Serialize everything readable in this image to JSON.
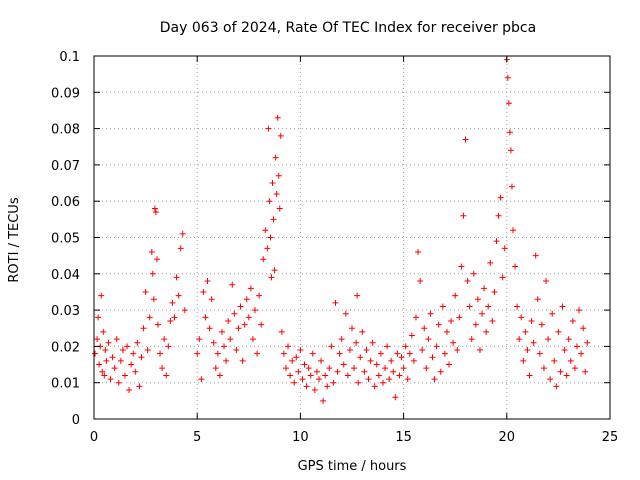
{
  "chart_data": {
    "type": "scatter",
    "title": "Day 063 of 2024, Rate Of TEC Index for receiver pbca",
    "xlabel": "GPS time / hours",
    "ylabel": "ROTI / TECUs",
    "xlim": [
      0,
      25
    ],
    "ylim": [
      0,
      0.1
    ],
    "xticks": [
      "0",
      "5",
      "10",
      "15",
      "20",
      "25"
    ],
    "yticks": [
      "0",
      "0.01",
      "0.02",
      "0.03",
      "0.04",
      "0.05",
      "0.06",
      "0.07",
      "0.08",
      "0.09",
      "0.1"
    ],
    "grid": true,
    "marker": "+",
    "color": "#ff0000",
    "series": [
      {
        "name": "ROTI",
        "points": [
          [
            0.05,
            0.018
          ],
          [
            0.15,
            0.022
          ],
          [
            0.2,
            0.028
          ],
          [
            0.25,
            0.015
          ],
          [
            0.3,
            0.02
          ],
          [
            0.35,
            0.034
          ],
          [
            0.4,
            0.013
          ],
          [
            0.45,
            0.024
          ],
          [
            0.5,
            0.012
          ],
          [
            0.55,
            0.019
          ],
          [
            0.6,
            0.016
          ],
          [
            0.7,
            0.021
          ],
          [
            0.8,
            0.011
          ],
          [
            0.9,
            0.017
          ],
          [
            1.0,
            0.014
          ],
          [
            1.1,
            0.022
          ],
          [
            1.2,
            0.01
          ],
          [
            1.3,
            0.016
          ],
          [
            1.4,
            0.019
          ],
          [
            1.5,
            0.012
          ],
          [
            1.6,
            0.02
          ],
          [
            1.7,
            0.008
          ],
          [
            1.8,
            0.015
          ],
          [
            1.9,
            0.018
          ],
          [
            2.0,
            0.013
          ],
          [
            2.1,
            0.021
          ],
          [
            2.2,
            0.009
          ],
          [
            2.3,
            0.017
          ],
          [
            2.4,
            0.025
          ],
          [
            2.5,
            0.035
          ],
          [
            2.6,
            0.019
          ],
          [
            2.7,
            0.028
          ],
          [
            2.8,
            0.046
          ],
          [
            2.85,
            0.04
          ],
          [
            2.9,
            0.033
          ],
          [
            2.95,
            0.058
          ],
          [
            3.0,
            0.057
          ],
          [
            3.05,
            0.044
          ],
          [
            3.1,
            0.026
          ],
          [
            3.2,
            0.018
          ],
          [
            3.3,
            0.014
          ],
          [
            3.4,
            0.022
          ],
          [
            3.5,
            0.012
          ],
          [
            3.6,
            0.02
          ],
          [
            3.7,
            0.027
          ],
          [
            3.8,
            0.032
          ],
          [
            3.9,
            0.028
          ],
          [
            4.0,
            0.039
          ],
          [
            4.1,
            0.034
          ],
          [
            4.2,
            0.047
          ],
          [
            4.3,
            0.051
          ],
          [
            4.4,
            0.03
          ],
          [
            5.0,
            0.018
          ],
          [
            5.1,
            0.022
          ],
          [
            5.2,
            0.011
          ],
          [
            5.3,
            0.035
          ],
          [
            5.4,
            0.028
          ],
          [
            5.5,
            0.038
          ],
          [
            5.6,
            0.025
          ],
          [
            5.7,
            0.033
          ],
          [
            5.8,
            0.021
          ],
          [
            5.9,
            0.014
          ],
          [
            6.0,
            0.018
          ],
          [
            6.1,
            0.012
          ],
          [
            6.2,
            0.024
          ],
          [
            6.3,
            0.02
          ],
          [
            6.4,
            0.016
          ],
          [
            6.5,
            0.027
          ],
          [
            6.6,
            0.022
          ],
          [
            6.7,
            0.037
          ],
          [
            6.8,
            0.029
          ],
          [
            6.9,
            0.019
          ],
          [
            7.0,
            0.025
          ],
          [
            7.1,
            0.031
          ],
          [
            7.2,
            0.016
          ],
          [
            7.3,
            0.026
          ],
          [
            7.4,
            0.033
          ],
          [
            7.5,
            0.028
          ],
          [
            7.6,
            0.036
          ],
          [
            7.7,
            0.022
          ],
          [
            7.8,
            0.03
          ],
          [
            7.9,
            0.018
          ],
          [
            8.0,
            0.034
          ],
          [
            8.1,
            0.026
          ],
          [
            8.2,
            0.044
          ],
          [
            8.3,
            0.052
          ],
          [
            8.4,
            0.047
          ],
          [
            8.45,
            0.08
          ],
          [
            8.5,
            0.06
          ],
          [
            8.55,
            0.05
          ],
          [
            8.6,
            0.039
          ],
          [
            8.65,
            0.065
          ],
          [
            8.7,
            0.055
          ],
          [
            8.75,
            0.041
          ],
          [
            8.8,
            0.072
          ],
          [
            8.85,
            0.062
          ],
          [
            8.9,
            0.083
          ],
          [
            8.95,
            0.067
          ],
          [
            9.0,
            0.058
          ],
          [
            9.05,
            0.078
          ],
          [
            9.1,
            0.024
          ],
          [
            9.2,
            0.018
          ],
          [
            9.3,
            0.014
          ],
          [
            9.4,
            0.02
          ],
          [
            9.5,
            0.012
          ],
          [
            9.6,
            0.016
          ],
          [
            9.7,
            0.01
          ],
          [
            9.8,
            0.017
          ],
          [
            9.9,
            0.013
          ],
          [
            10.0,
            0.019
          ],
          [
            10.1,
            0.011
          ],
          [
            10.2,
            0.015
          ],
          [
            10.3,
            0.009
          ],
          [
            10.4,
            0.014
          ],
          [
            10.5,
            0.012
          ],
          [
            10.6,
            0.018
          ],
          [
            10.7,
            0.008
          ],
          [
            10.8,
            0.013
          ],
          [
            10.9,
            0.011
          ],
          [
            11.0,
            0.016
          ],
          [
            11.1,
            0.005
          ],
          [
            11.2,
            0.012
          ],
          [
            11.3,
            0.009
          ],
          [
            11.4,
            0.014
          ],
          [
            11.5,
            0.02
          ],
          [
            11.6,
            0.01
          ],
          [
            11.7,
            0.032
          ],
          [
            11.8,
            0.013
          ],
          [
            11.9,
            0.018
          ],
          [
            12.0,
            0.022
          ],
          [
            12.1,
            0.015
          ],
          [
            12.2,
            0.029
          ],
          [
            12.3,
            0.012
          ],
          [
            12.4,
            0.019
          ],
          [
            12.5,
            0.025
          ],
          [
            12.6,
            0.014
          ],
          [
            12.7,
            0.021
          ],
          [
            12.75,
            0.034
          ],
          [
            12.8,
            0.01
          ],
          [
            12.9,
            0.017
          ],
          [
            13.0,
            0.024
          ],
          [
            13.1,
            0.013
          ],
          [
            13.2,
            0.019
          ],
          [
            13.3,
            0.011
          ],
          [
            13.4,
            0.016
          ],
          [
            13.5,
            0.021
          ],
          [
            13.6,
            0.009
          ],
          [
            13.7,
            0.015
          ],
          [
            13.8,
            0.012
          ],
          [
            13.9,
            0.018
          ],
          [
            14.0,
            0.01
          ],
          [
            14.1,
            0.014
          ],
          [
            14.2,
            0.02
          ],
          [
            14.3,
            0.011
          ],
          [
            14.4,
            0.016
          ],
          [
            14.5,
            0.013
          ],
          [
            14.6,
            0.006
          ],
          [
            14.7,
            0.018
          ],
          [
            14.8,
            0.012
          ],
          [
            14.9,
            0.017
          ],
          [
            15.0,
            0.014
          ],
          [
            15.1,
            0.02
          ],
          [
            15.2,
            0.011
          ],
          [
            15.3,
            0.018
          ],
          [
            15.4,
            0.023
          ],
          [
            15.5,
            0.016
          ],
          [
            15.6,
            0.028
          ],
          [
            15.7,
            0.046
          ],
          [
            15.8,
            0.038
          ],
          [
            15.9,
            0.019
          ],
          [
            16.0,
            0.025
          ],
          [
            16.1,
            0.014
          ],
          [
            16.2,
            0.022
          ],
          [
            16.3,
            0.029
          ],
          [
            16.4,
            0.017
          ],
          [
            16.5,
            0.011
          ],
          [
            16.6,
            0.02
          ],
          [
            16.7,
            0.026
          ],
          [
            16.8,
            0.013
          ],
          [
            16.9,
            0.031
          ],
          [
            17.0,
            0.018
          ],
          [
            17.1,
            0.024
          ],
          [
            17.2,
            0.015
          ],
          [
            17.3,
            0.027
          ],
          [
            17.4,
            0.021
          ],
          [
            17.5,
            0.034
          ],
          [
            17.6,
            0.019
          ],
          [
            17.7,
            0.028
          ],
          [
            17.8,
            0.042
          ],
          [
            17.9,
            0.056
          ],
          [
            18.0,
            0.077
          ],
          [
            18.1,
            0.038
          ],
          [
            18.2,
            0.031
          ],
          [
            18.3,
            0.022
          ],
          [
            18.4,
            0.04
          ],
          [
            18.5,
            0.026
          ],
          [
            18.6,
            0.033
          ],
          [
            18.7,
            0.019
          ],
          [
            18.8,
            0.029
          ],
          [
            18.9,
            0.036
          ],
          [
            19.0,
            0.024
          ],
          [
            19.1,
            0.031
          ],
          [
            19.2,
            0.043
          ],
          [
            19.3,
            0.027
          ],
          [
            19.4,
            0.035
          ],
          [
            19.5,
            0.049
          ],
          [
            19.6,
            0.056
          ],
          [
            19.7,
            0.061
          ],
          [
            19.8,
            0.039
          ],
          [
            19.9,
            0.047
          ],
          [
            20.0,
            0.099
          ],
          [
            20.05,
            0.094
          ],
          [
            20.1,
            0.087
          ],
          [
            20.15,
            0.079
          ],
          [
            20.2,
            0.074
          ],
          [
            20.25,
            0.064
          ],
          [
            20.3,
            0.052
          ],
          [
            20.4,
            0.042
          ],
          [
            20.5,
            0.031
          ],
          [
            20.6,
            0.022
          ],
          [
            20.7,
            0.028
          ],
          [
            20.8,
            0.016
          ],
          [
            20.9,
            0.024
          ],
          [
            21.0,
            0.019
          ],
          [
            21.1,
            0.012
          ],
          [
            21.2,
            0.027
          ],
          [
            21.3,
            0.021
          ],
          [
            21.4,
            0.045
          ],
          [
            21.5,
            0.033
          ],
          [
            21.6,
            0.018
          ],
          [
            21.7,
            0.026
          ],
          [
            21.8,
            0.014
          ],
          [
            21.9,
            0.038
          ],
          [
            22.0,
            0.022
          ],
          [
            22.1,
            0.011
          ],
          [
            22.2,
            0.029
          ],
          [
            22.3,
            0.016
          ],
          [
            22.4,
            0.009
          ],
          [
            22.5,
            0.024
          ],
          [
            22.6,
            0.013
          ],
          [
            22.7,
            0.031
          ],
          [
            22.8,
            0.019
          ],
          [
            22.9,
            0.012
          ],
          [
            23.0,
            0.022
          ],
          [
            23.1,
            0.016
          ],
          [
            23.2,
            0.027
          ],
          [
            23.3,
            0.014
          ],
          [
            23.4,
            0.02
          ],
          [
            23.5,
            0.03
          ],
          [
            23.6,
            0.018
          ],
          [
            23.7,
            0.025
          ],
          [
            23.8,
            0.013
          ],
          [
            23.9,
            0.021
          ]
        ]
      }
    ]
  }
}
